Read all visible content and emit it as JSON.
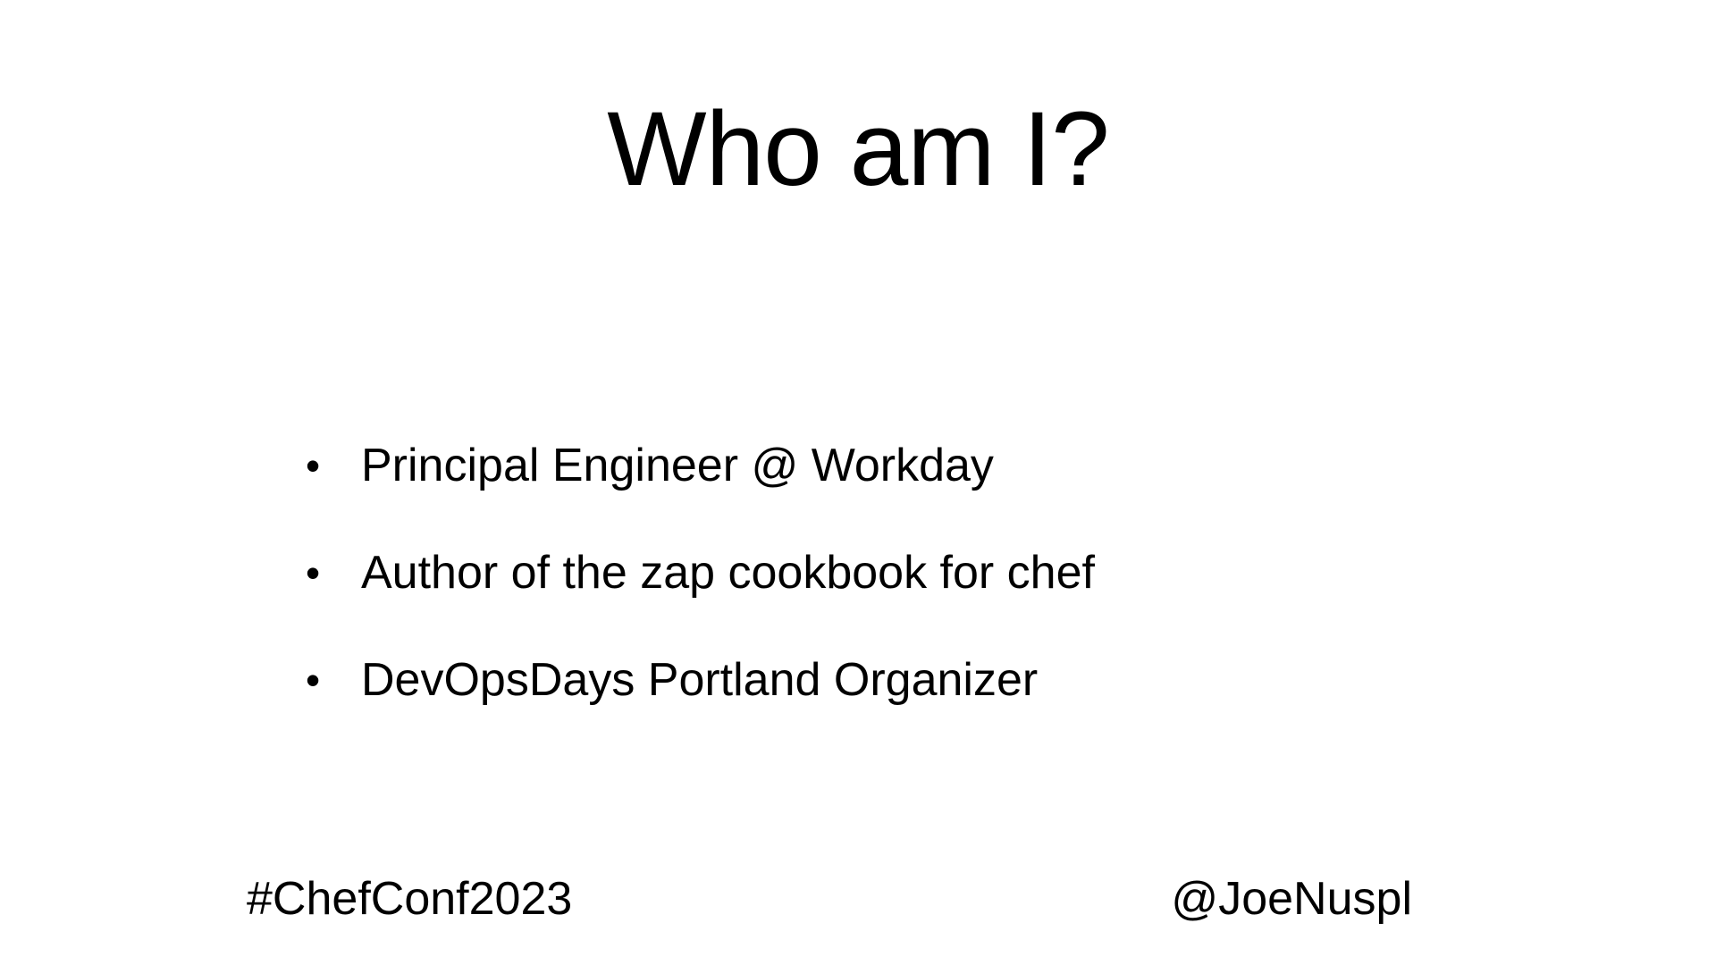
{
  "slide": {
    "title": "Who am I?",
    "bullets": [
      "Principal Engineer @ Workday",
      "Author of the zap cookbook for chef",
      "DevOpsDays Portland Organizer"
    ],
    "bullet_marker": "•",
    "footer_left": "#ChefConf2023",
    "footer_right": "@JoeNuspl"
  },
  "colors": {
    "background": "#ffffff",
    "text": "#000000"
  }
}
